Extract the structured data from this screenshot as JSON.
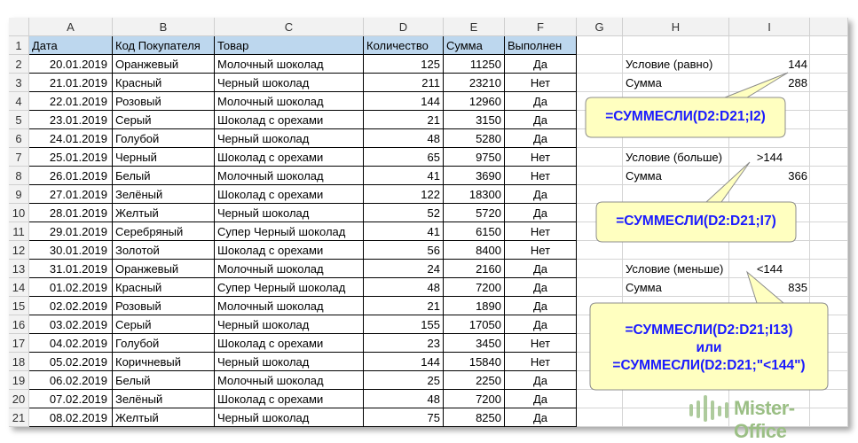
{
  "columns": [
    "A",
    "B",
    "C",
    "D",
    "E",
    "F",
    "G",
    "H",
    "I"
  ],
  "table": {
    "headers": [
      "Дата",
      "Код Покупателя",
      "Товар",
      "Количество",
      "Сумма",
      "Выполнен"
    ],
    "rows": [
      [
        "20.01.2019",
        "Оранжевый",
        "Молочный шоколад",
        "125",
        "11250",
        "Да"
      ],
      [
        "21.01.2019",
        "Красный",
        "Черный шоколад",
        "211",
        "23210",
        "Нет"
      ],
      [
        "22.01.2019",
        "Розовый",
        "Молочный шоколад",
        "144",
        "12960",
        "Да"
      ],
      [
        "23.01.2019",
        "Серый",
        "Шоколад с орехами",
        "21",
        "3150",
        "Да"
      ],
      [
        "24.01.2019",
        "Голубой",
        "Черный шоколад",
        "48",
        "5280",
        "Да"
      ],
      [
        "25.01.2019",
        "Черный",
        "Шоколад с орехами",
        "65",
        "9750",
        "Нет"
      ],
      [
        "26.01.2019",
        "Белый",
        "Молочный шоколад",
        "41",
        "3690",
        "Нет"
      ],
      [
        "27.01.2019",
        "Зелёный",
        "Шоколад с орехами",
        "122",
        "18300",
        "Да"
      ],
      [
        "28.01.2019",
        "Желтый",
        "Черный шоколад",
        "52",
        "5720",
        "Да"
      ],
      [
        "29.01.2019",
        "Серебряный",
        "Супер Черный шоколад",
        "41",
        "6150",
        "Нет"
      ],
      [
        "30.01.2019",
        "Золотой",
        "Шоколад с орехами",
        "56",
        "8400",
        "Нет"
      ],
      [
        "31.01.2019",
        "Оранжевый",
        "Молочный шоколад",
        "24",
        "2160",
        "Да"
      ],
      [
        "01.02.2019",
        "Красный",
        "Супер Черный шоколад",
        "48",
        "7200",
        "Да"
      ],
      [
        "02.02.2019",
        "Розовый",
        "Молочный шоколад",
        "21",
        "1890",
        "Да"
      ],
      [
        "03.02.2019",
        "Серый",
        "Черный шоколад",
        "155",
        "17050",
        "Да"
      ],
      [
        "04.02.2019",
        "Голубой",
        "Шоколад с орехами",
        "23",
        "3450",
        "Нет"
      ],
      [
        "05.02.2019",
        "Коричневый",
        "Черный шоколад",
        "144",
        "15840",
        "Нет"
      ],
      [
        "06.02.2019",
        "Белый",
        "Молочный шоколад",
        "25",
        "2250",
        "Да"
      ],
      [
        "07.02.2019",
        "Зелёный",
        "Шоколад с орехами",
        "48",
        "7200",
        "Да"
      ],
      [
        "08.02.2019",
        "Желтый",
        "Черный шоколад",
        "75",
        "8250",
        "Да"
      ]
    ]
  },
  "side": [
    {
      "row": 2,
      "label": "Условие (равно)",
      "value": "144"
    },
    {
      "row": 3,
      "label": "Сумма",
      "value": "288"
    },
    {
      "row": 7,
      "label": "Условие (больше)",
      "value": ">144"
    },
    {
      "row": 8,
      "label": "Сумма",
      "value": "366"
    },
    {
      "row": 13,
      "label": "Условие (меньше)",
      "value": "<144"
    },
    {
      "row": 14,
      "label": "Сумма",
      "value": "835"
    }
  ],
  "callouts": {
    "c1": "=СУММЕСЛИ(D2:D21;I2)",
    "c2": "=СУММЕСЛИ(D2:D21;I7)",
    "c3a": "=СУММЕСЛИ(D2:D21;I13)",
    "c3b": "или",
    "c3c": "=СУММЕСЛИ(D2:D21;\"<144\")"
  },
  "logo": "Mister-Office",
  "colors": {
    "header_fill": "#bdd7ee",
    "callout_fill": "#ffffc0",
    "formula_text": "#1a1aff",
    "logo": "#9bbf85"
  }
}
